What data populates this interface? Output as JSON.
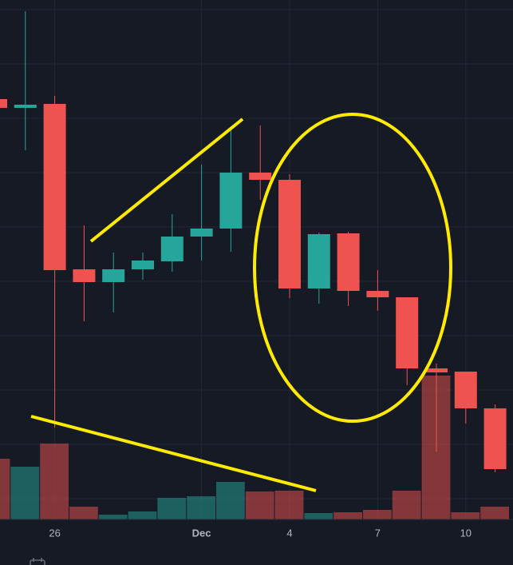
{
  "chart_data": {
    "type": "candlestick",
    "categories": [
      null,
      null,
      "26",
      null,
      null,
      null,
      null,
      "Dec",
      null,
      null,
      "4",
      null,
      null,
      "7",
      null,
      null,
      "10",
      null
    ],
    "open": [
      576,
      565,
      570,
      363,
      347,
      363,
      373,
      404,
      414,
      484,
      475,
      339,
      408,
      336,
      328,
      239,
      235,
      189
    ],
    "high": [
      576,
      686,
      580,
      418,
      384,
      384,
      432,
      494,
      537,
      543,
      482,
      409,
      410,
      362,
      328,
      245,
      235,
      194
    ],
    "low": [
      565,
      512,
      165,
      298,
      309,
      350,
      360,
      374,
      385,
      450,
      327,
      320,
      317,
      311,
      218,
      135,
      170,
      109
    ],
    "close": [
      565,
      569,
      362,
      347,
      363,
      374,
      404,
      414,
      484,
      475,
      339,
      407,
      336,
      328,
      239,
      234,
      189,
      113
    ],
    "volume": [
      76,
      66,
      95,
      16,
      6,
      10,
      27,
      29,
      47,
      35,
      36,
      8,
      9,
      12,
      36,
      180,
      9,
      16
    ],
    "up_color": "#26a69a",
    "down_color": "#ef5350",
    "ylim": [
      -7,
      700
    ],
    "yticks": [
      688,
      620,
      552,
      484,
      416,
      348,
      280,
      212,
      144,
      76
    ],
    "volume_lim": [
      0,
      650
    ],
    "grid": true
  }
}
